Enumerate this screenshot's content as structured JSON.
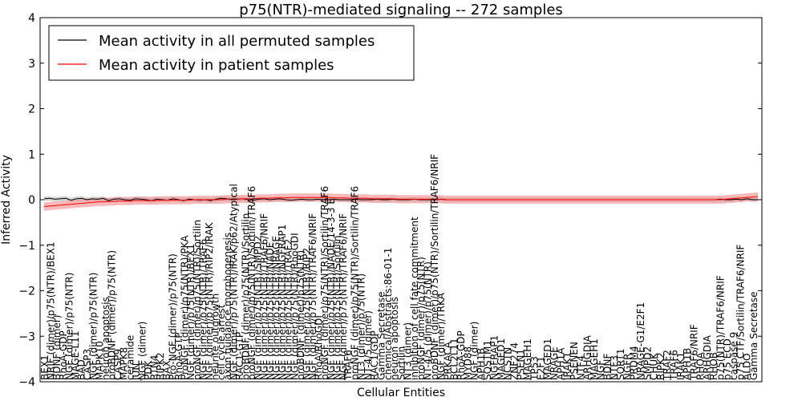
{
  "chart_data": {
    "type": "line",
    "title": "p75(NTR)-mediated signaling -- 272 samples",
    "xlabel": "Cellular Entities",
    "ylabel": "Inferred Activity",
    "ylim": [
      -4,
      4
    ],
    "yticks": [
      -4,
      -3,
      -2,
      -1,
      0,
      1,
      2,
      3,
      4
    ],
    "grid": false,
    "legend_position": "top-left",
    "colors": {
      "permuted": "#000000",
      "patient": "#ff0000",
      "patient_band": "#f08080",
      "permuted_band": "#b0b0b0"
    },
    "series": [
      {
        "name": "Mean activity in all permuted samples",
        "values": [
          0.02,
          0.03,
          0.01,
          0.02,
          0.03,
          -0.01,
          0.02,
          0.03,
          0.0,
          0.02,
          0.01,
          0.03,
          -0.02,
          0.01,
          0.02,
          0.0,
          -0.01,
          0.02,
          0.01,
          0.0,
          -0.02,
          0.01,
          0.0,
          -0.01,
          0.02,
          0.0,
          -0.02,
          0.01,
          0.0,
          -0.01,
          0.0,
          -0.02,
          0.01,
          0.03,
          0.02,
          0.0,
          0.01,
          0.02,
          0.0,
          -0.01,
          0.01,
          0.02,
          0.0,
          0.01,
          0.02,
          0.0,
          -0.01,
          0.0,
          0.01,
          0.0,
          0.0,
          0.01,
          0.0,
          0.0,
          0.01,
          0.0,
          0.0,
          0.0,
          0.01,
          0.0,
          0.0,
          0.0,
          0.01,
          0.0,
          0.0,
          0.01,
          0.0,
          0.0,
          0.0,
          0.01,
          0.0,
          0.0,
          0.0,
          0.0,
          0.01,
          0.0,
          0.0,
          0.0,
          0.0,
          0.0,
          0.0,
          0.0,
          0.0,
          0.0,
          0.0,
          0.0,
          0.0,
          0.0,
          0.0,
          0.0,
          0.0,
          0.0,
          0.0,
          0.0,
          0.0,
          0.0,
          0.0,
          0.0,
          0.0,
          0.0,
          0.0,
          0.0,
          0.0,
          0.0,
          0.0,
          0.0,
          0.0,
          0.0,
          0.0,
          0.0,
          0.0,
          0.0,
          0.0,
          0.0,
          0.0,
          0.0,
          0.0,
          0.0,
          0.0,
          0.0,
          0.0,
          0.0,
          0.0,
          0.0,
          0.0,
          0.0,
          0.01,
          0.0,
          0.0,
          0.01,
          0.0,
          0.02,
          0.0,
          0.0
        ],
        "band": 0.05
      },
      {
        "name": "Mean activity in patient samples",
        "values": [
          -0.15,
          -0.14,
          -0.13,
          -0.12,
          -0.11,
          -0.1,
          -0.09,
          -0.08,
          -0.07,
          -0.06,
          -0.05,
          -0.05,
          -0.04,
          -0.04,
          -0.03,
          -0.03,
          -0.03,
          -0.02,
          -0.02,
          -0.02,
          -0.02,
          -0.02,
          -0.01,
          -0.01,
          -0.01,
          -0.01,
          -0.01,
          -0.01,
          0.0,
          0.0,
          0.0,
          0.0,
          0.0,
          0.0,
          0.01,
          0.01,
          0.01,
          0.02,
          0.02,
          0.02,
          0.03,
          0.03,
          0.03,
          0.04,
          0.04,
          0.04,
          0.05,
          0.05,
          0.05,
          0.05,
          0.05,
          0.05,
          0.05,
          0.05,
          0.04,
          0.04,
          0.04,
          0.03,
          0.03,
          0.03,
          0.03,
          0.02,
          0.02,
          0.02,
          0.02,
          0.02,
          0.01,
          0.01,
          0.01,
          0.01,
          0.01,
          0.01,
          0.01,
          0.01,
          0.01,
          0.0,
          0.0,
          0.0,
          0.0,
          0.0,
          0.0,
          0.0,
          0.0,
          0.0,
          0.0,
          0.0,
          0.0,
          0.0,
          0.0,
          0.0,
          0.0,
          0.0,
          0.0,
          0.0,
          0.0,
          0.0,
          0.0,
          0.0,
          0.0,
          0.0,
          0.0,
          0.0,
          0.0,
          0.0,
          0.0,
          0.0,
          0.0,
          0.0,
          0.0,
          0.0,
          0.0,
          0.0,
          0.0,
          0.0,
          0.0,
          0.0,
          0.0,
          0.0,
          0.0,
          0.0,
          0.0,
          0.0,
          0.0,
          0.0,
          0.0,
          0.0,
          0.0,
          0.01,
          0.02,
          0.03,
          0.04,
          0.05,
          0.06,
          0.07
        ],
        "band": 0.09
      }
    ],
    "labels_group1": [
      "BEX1",
      "NRIF (dimer)/p75(NTR)/BEX1",
      "BDNF (dimer)",
      "RhoA-GDP",
      "NGF (dimer)/p75(NTR)",
      "MAGE-L11",
      "BAD",
      "CASP3",
      "NGF (dimer)/p75(NTR)",
      "MAPK10",
      "neuron apoptosis",
      "proBDNF (dimer)/p75(NTR)",
      "CASP9",
      "MAPK8",
      "ceramide",
      "JUN",
      "NGF (dimer)",
      "PDK",
      "RTN4",
      "RIPK2",
      "BAX",
      "Pro-NGF (dimer)/p75(NTR)",
      "RhoA-GTP",
      "ProNGF (dimer)/p75(NTR)/PKA",
      "NGF (dimer)/p75(NTR)/BEX1",
      "proNGF (dimer)/p75(NTR)/Sortilin",
      "NGF (dimer)/p75(NTR)/TRAF6",
      "NGF (dimer)/p75(NTR)/RIP2/IRAK",
      "neurite outgrowth",
      "cell cycle arrest",
      "axon guidance morphogenesis",
      "NGF (dimer)/p75(NTR)/IRAK/p62/Atypical",
      "RAC1-GTP",
      "proBDNF (dimer)/p75(NTR)/Sortilin",
      "proNGF (dimer)/p75(NTR)/Sortilin/TRAF6",
      "NGF (dimer)/p75(NTR)/SMPD2",
      "NGF (dimer)/p75(NTR)/TRAF6/NRIF",
      "NGF (dimer)/p75(NTR)/NADE",
      "NGF (dimer)/p75(NTR)/NRAGE",
      "NGF (dimer)/p75(NTR)/NGFRAP1",
      "NGF (dimer)/p75(NTR)/TRAF2",
      "NGF (dimer)/p75(NTR)/RhoGDI",
      "proBDNF (dimer)/p75(NTR)",
      "NGF (dimer)/p75(NTR)/RIP2",
      "NGF (dimer)/p75(NTR)/TRAF6/NRIF",
      "RhoA/RhoGDI",
      "proNGF (dimer)/p75(NTR)/Sortilin/TRAF6",
      "NGF (dimer)/p75(NTR)/NADE/14-3-3 E",
      "NGF (dimer)/p75(NTR)/Sortilin",
      "NGF (dimer)/p75(NTR)/TRAF6/NRIF"
    ],
    "labels_group2": [
      "TRAF6",
      "proNGF (dimer)/p75(NTR)/Sortilin/TRAF6",
      "NT3 (dimer)/p75(NTR)",
      "NT-4/5 (dimer)",
      "RAC1/GDP",
      "Gamma Secretase",
      "chemical/Abstracts:86-01-1",
      "neuron apoptosis",
      "Sortilin",
      "NT3 (dimer)",
      "inhibition of cell fate commitment",
      "proNGF (dimer)/p75(NTR)",
      "NT-4/5 (dimer)/p75(NTR)",
      "proBDNF (dimer)/p75(NTR)/Sortilin/TRAF6/NRIF",
      "NGF (dimer)/TRKA",
      "PRKACA",
      "BCL2L11",
      "RhoA-GDP",
      "MYD88",
      "NGF (dimer)",
      "APH1B",
      "SQSTM1",
      "NGFRAP1",
      "MAGED1",
      "NCSTN",
      "ZNF274",
      "PSEN1",
      "MAGEH1",
      "TP53",
      "E2F1",
      "MAGED1",
      "NRAGE",
      "APH1A",
      "IRAK1",
      "PSENEN",
      "NTF4",
      "ARHGDIA",
      "MAGEH1",
      "NGF",
      "BDNF",
      "NTF3",
      "SORT1",
      "NGFR",
      "PRDM4",
      "NRAGE-G1/E2F1",
      "SMPD2",
      "CHUK",
      "RIPK2",
      "TRAF2",
      "TRAF6",
      "IRAK1",
      "APH1B",
      "TRAF6/NRIF",
      "RHOA",
      "ARHGDIA",
      "RHOB",
      "p75(NTR)/TRAF6/NRIF",
      "p75 ECD",
      "caspase 9",
      "p75 CTF/Sortilin/TRAF6/NRIF",
      "ALDO",
      "Gamma Secretase"
    ]
  }
}
